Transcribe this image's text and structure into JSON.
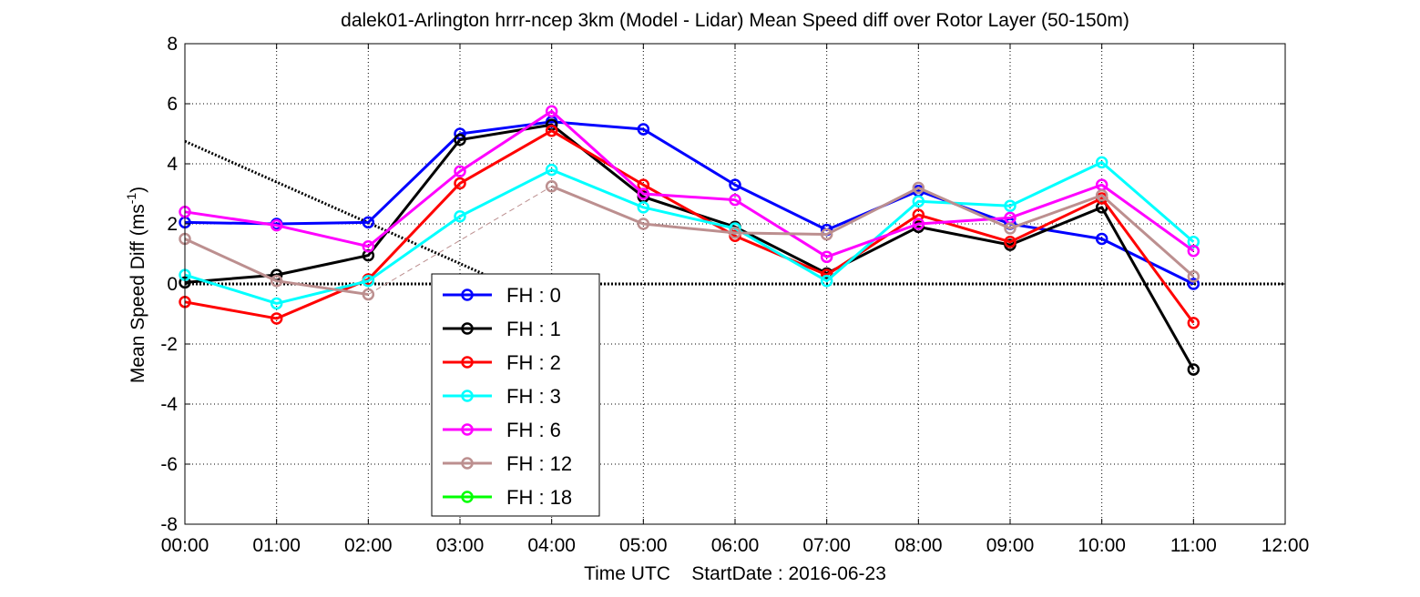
{
  "chart_data": {
    "type": "line",
    "title": "dalek01-Arlington hrrr-ncep 3km (Model - Lidar) Mean Speed diff over Rotor Layer (50-150m)",
    "xlabel": "Time UTC    StartDate : 2016-06-23",
    "ylabel_main": "Mean Speed Diff (ms",
    "ylabel_sup": "-1",
    "ylabel_end": ")",
    "x_ticks": [
      "00:00",
      "01:00",
      "02:00",
      "03:00",
      "04:00",
      "05:00",
      "06:00",
      "07:00",
      "08:00",
      "09:00",
      "10:00",
      "11:00",
      "12:00"
    ],
    "y_ticks": [
      "8",
      "6",
      "4",
      "2",
      "0",
      "-2",
      "-4",
      "-6",
      "-8"
    ],
    "xlim": [
      0,
      12
    ],
    "ylim": [
      -8,
      8
    ],
    "grid": true,
    "legend_position": "lower-left inside",
    "series": [
      {
        "name": "FH : 0",
        "color": "#0000ff",
        "x": [
          0,
          1,
          2,
          3,
          4,
          5,
          6,
          7,
          8,
          9,
          10,
          11
        ],
        "values": [
          2.05,
          2.0,
          2.05,
          5.0,
          5.4,
          5.15,
          3.3,
          1.8,
          3.1,
          2.0,
          1.5,
          0.0
        ]
      },
      {
        "name": "FH : 1",
        "color": "#000000",
        "x": [
          0,
          1,
          2,
          3,
          4,
          5,
          6,
          7,
          8,
          9,
          10,
          11
        ],
        "values": [
          0.05,
          0.3,
          0.95,
          4.8,
          5.3,
          2.9,
          1.9,
          0.35,
          1.9,
          1.3,
          2.55,
          -2.85
        ]
      },
      {
        "name": "FH : 2",
        "color": "#ff0000",
        "x": [
          0,
          1,
          2,
          3,
          4,
          5,
          6,
          7,
          8,
          9,
          10,
          11
        ],
        "values": [
          -0.6,
          -1.15,
          0.15,
          3.35,
          5.1,
          3.3,
          1.6,
          0.3,
          2.3,
          1.4,
          2.85,
          -1.3
        ]
      },
      {
        "name": "FH : 3",
        "color": "#00ffff",
        "x": [
          0,
          1,
          2,
          3,
          4,
          5,
          6,
          7,
          8,
          9,
          10,
          11
        ],
        "values": [
          0.3,
          -0.65,
          0.1,
          2.25,
          3.8,
          2.55,
          1.85,
          0.1,
          2.75,
          2.6,
          4.05,
          1.4
        ]
      },
      {
        "name": "FH : 6",
        "color": "#ff00ff",
        "x": [
          0,
          1,
          2,
          3,
          4,
          5,
          6,
          7,
          8,
          9,
          10,
          11
        ],
        "values": [
          2.4,
          1.95,
          1.25,
          3.75,
          5.75,
          3.0,
          2.8,
          0.9,
          2.0,
          2.2,
          3.3,
          1.1
        ]
      },
      {
        "name": "FH : 12",
        "color": "#bc8f8f",
        "x": [
          0,
          1,
          2,
          3,
          4,
          5,
          6,
          7,
          8,
          9,
          10,
          11
        ],
        "values": [
          1.5,
          0.1,
          -0.35,
          null,
          3.25,
          2.0,
          1.7,
          1.65,
          3.2,
          1.85,
          2.95,
          0.25
        ]
      },
      {
        "name": "FH : 18",
        "color": "#00ff00",
        "x": [],
        "values": []
      }
    ],
    "reference_lines": [
      {
        "kind": "zero",
        "color": "#000000",
        "style": "dotted",
        "x": [
          0,
          12
        ],
        "values": [
          0,
          0
        ]
      },
      {
        "kind": "trend",
        "color": "#000000",
        "style": "dotted",
        "x": [
          0,
          3.5
        ],
        "values": [
          4.75,
          0
        ]
      }
    ],
    "connectors": [
      {
        "color": "#bc8f8f",
        "style": "dashed",
        "x": [
          2,
          4
        ],
        "values": [
          -0.35,
          3.25
        ]
      }
    ]
  }
}
